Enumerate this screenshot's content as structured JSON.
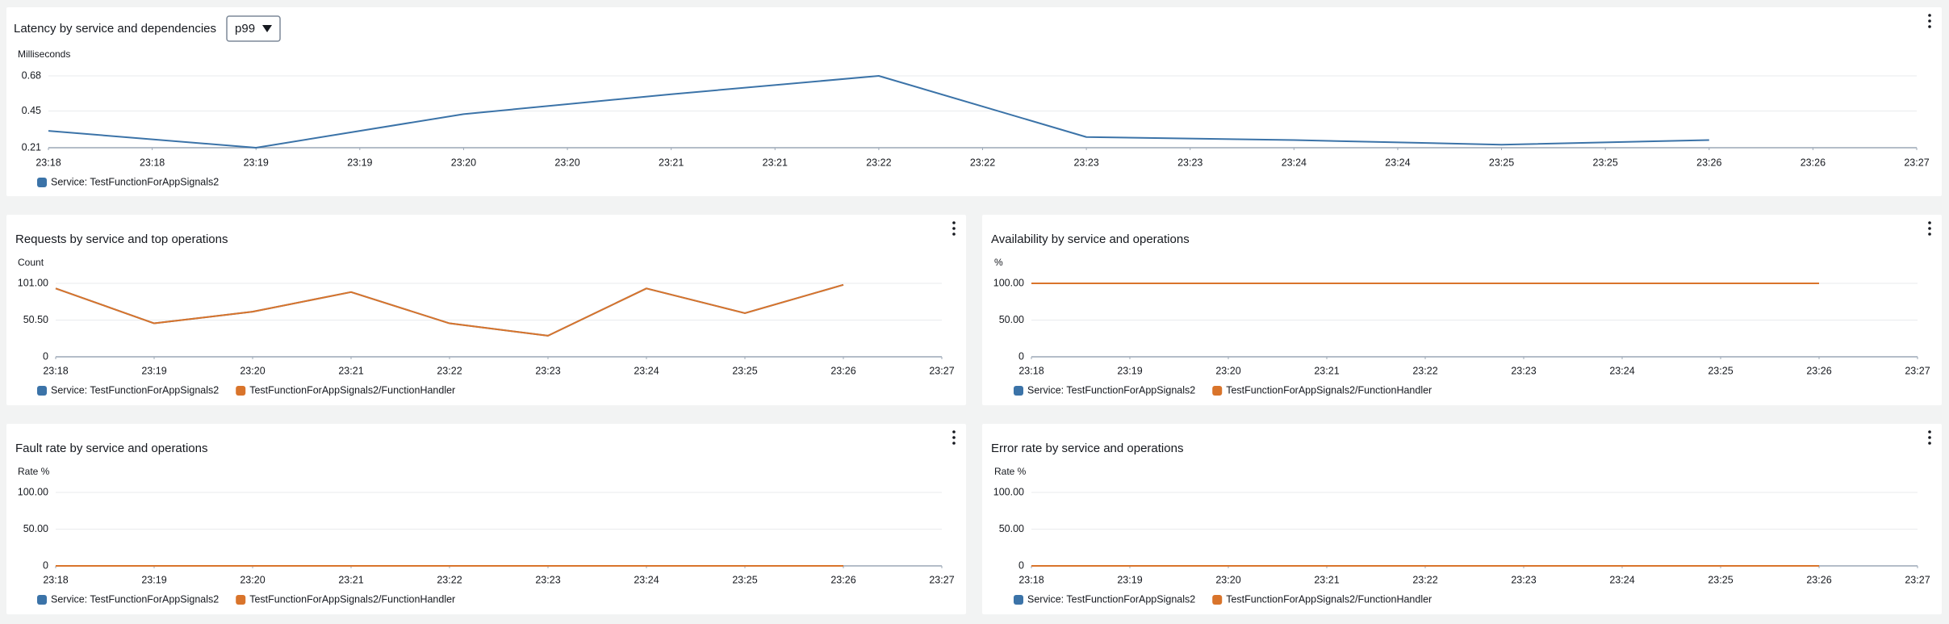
{
  "dropdown": "p99",
  "chart_data": [
    {
      "type": "line",
      "title": "Latency by service and dependencies",
      "y_label": "Milliseconds",
      "x": [
        1398,
        1399,
        1400,
        1401,
        1402,
        1403,
        1404,
        1405,
        1406
      ],
      "xlim": [
        1398,
        1407
      ],
      "xticks": [
        {
          "value": 1398,
          "label": "23:18"
        },
        {
          "value": 1398.5,
          "label": "23:18"
        },
        {
          "value": 1399,
          "label": "23:19"
        },
        {
          "value": 1399.5,
          "label": "23:19"
        },
        {
          "value": 1400,
          "label": "23:20"
        },
        {
          "value": 1400.5,
          "label": "23:20"
        },
        {
          "value": 1401,
          "label": "23:21"
        },
        {
          "value": 1401.5,
          "label": "23:21"
        },
        {
          "value": 1402,
          "label": "23:22"
        },
        {
          "value": 1402.5,
          "label": "23:22"
        },
        {
          "value": 1403,
          "label": "23:23"
        },
        {
          "value": 1403.5,
          "label": "23:23"
        },
        {
          "value": 1404,
          "label": "23:24"
        },
        {
          "value": 1404.5,
          "label": "23:24"
        },
        {
          "value": 1405,
          "label": "23:25"
        },
        {
          "value": 1405.5,
          "label": "23:25"
        },
        {
          "value": 1406,
          "label": "23:26"
        },
        {
          "value": 1406.5,
          "label": "23:26"
        },
        {
          "value": 1407,
          "label": "23:27"
        }
      ],
      "ylim": [
        0.21,
        0.68
      ],
      "yticks": [
        0.21,
        0.45,
        0.68
      ],
      "grid": true,
      "series": [
        {
          "name": "Service: TestFunctionForAppSignals2",
          "color": "#3b73a8",
          "values": [
            0.32,
            0.21,
            0.43,
            0.56,
            0.68,
            0.28,
            0.26,
            0.23,
            0.26
          ]
        }
      ]
    },
    {
      "type": "line",
      "title": "Requests by service and top operations",
      "y_label": "Count",
      "x": [
        1398,
        1399,
        1400,
        1401,
        1402,
        1403,
        1404,
        1405,
        1406
      ],
      "xlim": [
        1398,
        1407
      ],
      "xticks": [
        {
          "value": 1398,
          "label": "23:18"
        },
        {
          "value": 1399,
          "label": "23:19"
        },
        {
          "value": 1400,
          "label": "23:20"
        },
        {
          "value": 1401,
          "label": "23:21"
        },
        {
          "value": 1402,
          "label": "23:22"
        },
        {
          "value": 1403,
          "label": "23:23"
        },
        {
          "value": 1404,
          "label": "23:24"
        },
        {
          "value": 1405,
          "label": "23:25"
        },
        {
          "value": 1406,
          "label": "23:26"
        },
        {
          "value": 1407,
          "label": "23:27"
        }
      ],
      "ylim": [
        0,
        101
      ],
      "yticks": [
        0,
        {
          "value": 50.5,
          "label": "50.50"
        },
        {
          "value": 101,
          "label": "101.00"
        }
      ],
      "grid": true,
      "series": [
        {
          "name": "Service: TestFunctionForAppSignals2",
          "color": "#3b73a8",
          "values": [
            94,
            46,
            62,
            89,
            46,
            29,
            94,
            60,
            99
          ]
        },
        {
          "name": "TestFunctionForAppSignals2/FunctionHandler",
          "color": "#d9742b",
          "values": [
            94,
            46,
            62,
            89,
            46,
            29,
            94,
            60,
            99
          ]
        }
      ]
    },
    {
      "type": "line",
      "title": "Availability by service and operations",
      "y_label": "%",
      "x": [
        1398,
        1399,
        1400,
        1401,
        1402,
        1403,
        1404,
        1405,
        1406
      ],
      "xlim": [
        1398,
        1407
      ],
      "xticks": [
        {
          "value": 1398,
          "label": "23:18"
        },
        {
          "value": 1399,
          "label": "23:19"
        },
        {
          "value": 1400,
          "label": "23:20"
        },
        {
          "value": 1401,
          "label": "23:21"
        },
        {
          "value": 1402,
          "label": "23:22"
        },
        {
          "value": 1403,
          "label": "23:23"
        },
        {
          "value": 1404,
          "label": "23:24"
        },
        {
          "value": 1405,
          "label": "23:25"
        },
        {
          "value": 1406,
          "label": "23:26"
        },
        {
          "value": 1407,
          "label": "23:27"
        }
      ],
      "ylim": [
        0,
        100
      ],
      "yticks": [
        0,
        {
          "value": 50,
          "label": "50.00"
        },
        {
          "value": 100,
          "label": "100.00"
        }
      ],
      "grid": true,
      "series": [
        {
          "name": "Service: TestFunctionForAppSignals2",
          "color": "#3b73a8",
          "values": [
            100,
            100,
            100,
            100,
            100,
            100,
            100,
            100,
            100
          ]
        },
        {
          "name": "TestFunctionForAppSignals2/FunctionHandler",
          "color": "#d9742b",
          "values": [
            100,
            100,
            100,
            100,
            100,
            100,
            100,
            100,
            100
          ]
        }
      ]
    },
    {
      "type": "line",
      "title": "Fault rate by service and operations",
      "y_label": "Rate %",
      "x": [
        1398,
        1399,
        1400,
        1401,
        1402,
        1403,
        1404,
        1405,
        1406
      ],
      "xlim": [
        1398,
        1407
      ],
      "xticks": [
        {
          "value": 1398,
          "label": "23:18"
        },
        {
          "value": 1399,
          "label": "23:19"
        },
        {
          "value": 1400,
          "label": "23:20"
        },
        {
          "value": 1401,
          "label": "23:21"
        },
        {
          "value": 1402,
          "label": "23:22"
        },
        {
          "value": 1403,
          "label": "23:23"
        },
        {
          "value": 1404,
          "label": "23:24"
        },
        {
          "value": 1405,
          "label": "23:25"
        },
        {
          "value": 1406,
          "label": "23:26"
        },
        {
          "value": 1407,
          "label": "23:27"
        }
      ],
      "ylim": [
        0,
        100
      ],
      "yticks": [
        0,
        {
          "value": 50,
          "label": "50.00"
        },
        {
          "value": 100,
          "label": "100.00"
        }
      ],
      "grid": true,
      "series": [
        {
          "name": "Service: TestFunctionForAppSignals2",
          "color": "#3b73a8",
          "values": [
            0,
            0,
            0,
            0,
            0,
            0,
            0,
            0,
            0
          ]
        },
        {
          "name": "TestFunctionForAppSignals2/FunctionHandler",
          "color": "#d9742b",
          "values": [
            0,
            0,
            0,
            0,
            0,
            0,
            0,
            0,
            0
          ]
        }
      ]
    },
    {
      "type": "line",
      "title": "Error rate by service and operations",
      "y_label": "Rate %",
      "x": [
        1398,
        1399,
        1400,
        1401,
        1402,
        1403,
        1404,
        1405,
        1406
      ],
      "xlim": [
        1398,
        1407
      ],
      "xticks": [
        {
          "value": 1398,
          "label": "23:18"
        },
        {
          "value": 1399,
          "label": "23:19"
        },
        {
          "value": 1400,
          "label": "23:20"
        },
        {
          "value": 1401,
          "label": "23:21"
        },
        {
          "value": 1402,
          "label": "23:22"
        },
        {
          "value": 1403,
          "label": "23:23"
        },
        {
          "value": 1404,
          "label": "23:24"
        },
        {
          "value": 1405,
          "label": "23:25"
        },
        {
          "value": 1406,
          "label": "23:26"
        },
        {
          "value": 1407,
          "label": "23:27"
        }
      ],
      "ylim": [
        0,
        100
      ],
      "yticks": [
        0,
        {
          "value": 50,
          "label": "50.00"
        },
        {
          "value": 100,
          "label": "100.00"
        }
      ],
      "grid": true,
      "series": [
        {
          "name": "Service: TestFunctionForAppSignals2",
          "color": "#3b73a8",
          "values": [
            0,
            0,
            0,
            0,
            0,
            0,
            0,
            0,
            0
          ]
        },
        {
          "name": "TestFunctionForAppSignals2/FunctionHandler",
          "color": "#d9742b",
          "values": [
            0,
            0,
            0,
            0,
            0,
            0,
            0,
            0,
            0
          ]
        }
      ]
    }
  ]
}
